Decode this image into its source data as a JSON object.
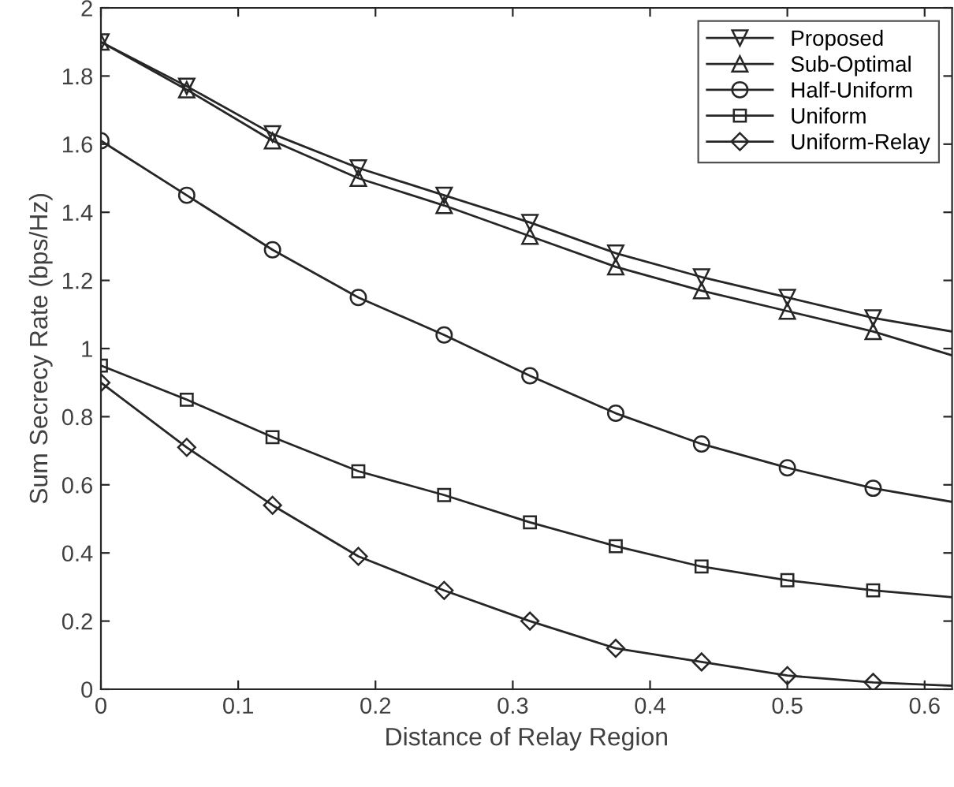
{
  "chart_data": {
    "type": "line",
    "xlabel": "Distance of Relay Region",
    "ylabel": "Sum Secrecy Rate (bps/Hz)",
    "x": [
      0,
      0.0625,
      0.125,
      0.1875,
      0.25,
      0.3125,
      0.375,
      0.4375,
      0.5,
      0.5625,
      0.62
    ],
    "xlim": [
      0,
      0.62
    ],
    "xticks": [
      0,
      0.1,
      0.2,
      0.3,
      0.4,
      0.5,
      0.6
    ],
    "ylim": [
      0,
      2
    ],
    "yticks": [
      0,
      0.2,
      0.4,
      0.6,
      0.8,
      1,
      1.2,
      1.4,
      1.6,
      1.8,
      2
    ],
    "grid": false,
    "legend": "top right",
    "line_style": "solid",
    "series": [
      {
        "name": "Proposed",
        "color": "#262626",
        "marker": "triangle_down",
        "values": [
          1.9,
          1.77,
          1.63,
          1.53,
          1.45,
          1.37,
          1.28,
          1.21,
          1.15,
          1.09,
          1.05
        ]
      },
      {
        "name": "Sub-Optimal",
        "color": "#262626",
        "marker": "triangle",
        "values": [
          1.9,
          1.76,
          1.61,
          1.5,
          1.42,
          1.33,
          1.24,
          1.17,
          1.11,
          1.05,
          0.98
        ]
      },
      {
        "name": "Half-Uniform",
        "color": "#262626",
        "marker": "circle",
        "values": [
          1.61,
          1.45,
          1.29,
          1.15,
          1.04,
          0.92,
          0.81,
          0.72,
          0.65,
          0.59,
          0.55
        ]
      },
      {
        "name": "Uniform",
        "color": "#262626",
        "marker": "square",
        "values": [
          0.95,
          0.85,
          0.74,
          0.64,
          0.57,
          0.49,
          0.42,
          0.36,
          0.32,
          0.29,
          0.27
        ]
      },
      {
        "name": "Uniform-Relay",
        "color": "#262626",
        "marker": "diamond",
        "values": [
          0.9,
          0.71,
          0.54,
          0.39,
          0.29,
          0.2,
          0.12,
          0.08,
          0.04,
          0.02,
          0.01
        ]
      }
    ]
  }
}
